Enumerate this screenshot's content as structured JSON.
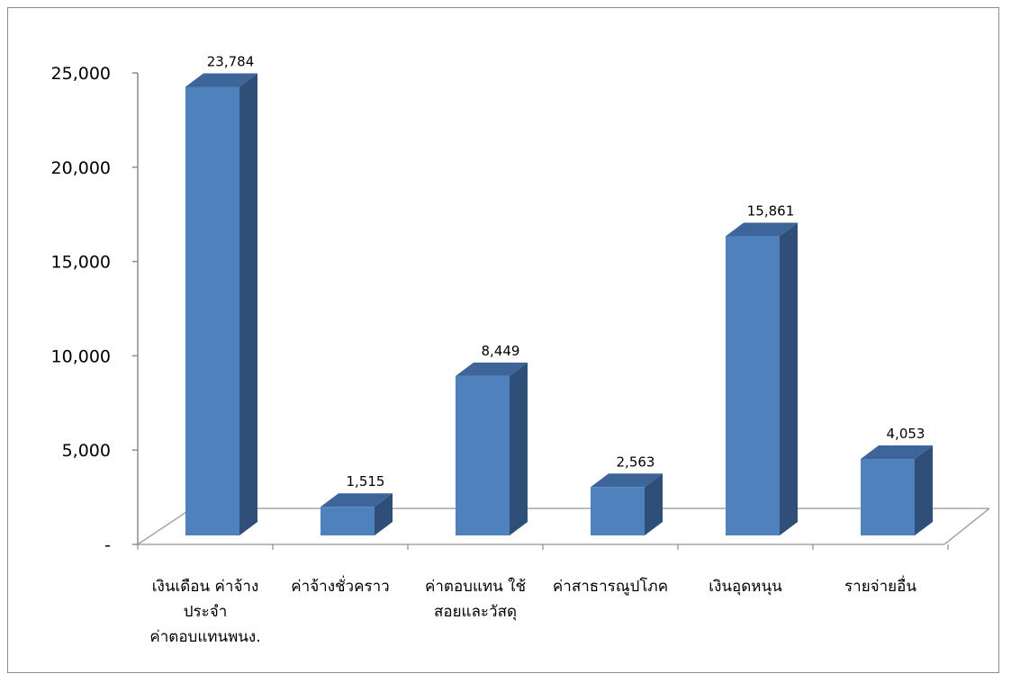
{
  "chart_data": {
    "type": "bar",
    "style": "3d-column",
    "categories": [
      [
        "เงินเดือน ค่าจ้าง",
        "ประจำ",
        "ค่าตอบแทนพนง."
      ],
      [
        "ค่าจ้างชั่วคราว"
      ],
      [
        "ค่าตอบแทน ใช้",
        "สอยและวัสดุ"
      ],
      [
        "ค่าสาธารณูปโภค"
      ],
      [
        "เงินอุดหนุน"
      ],
      [
        "รายจ่ายอื่น"
      ]
    ],
    "values": [
      23784,
      1515,
      8449,
      2563,
      15861,
      4053
    ],
    "data_labels": [
      "23,784",
      "1,515",
      "8,449",
      "2,563",
      "15,861",
      "4,053"
    ],
    "ylim": [
      0,
      25000
    ],
    "yticks": [
      0,
      5000,
      10000,
      15000,
      20000,
      25000
    ],
    "ytick_labels": [
      "-",
      "5,000",
      "10,000",
      "15,000",
      "20,000",
      "25,000"
    ],
    "title": "",
    "xlabel": "",
    "ylabel": "",
    "grid": false,
    "legend": false,
    "colors": {
      "front": "#4F81BD",
      "side": "#2F4E78",
      "top": "#3D659A",
      "floor_line": "#a6a6a6"
    }
  }
}
